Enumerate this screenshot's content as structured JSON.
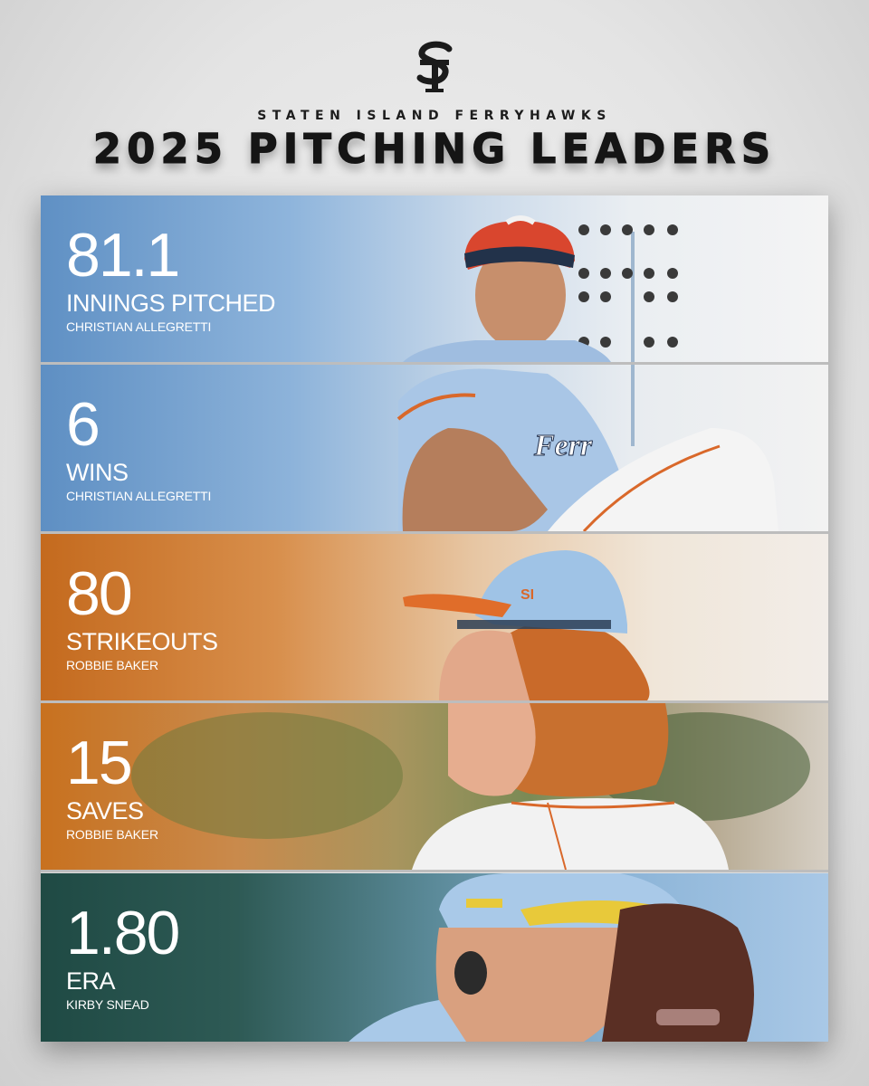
{
  "brand": {
    "logo_icon": "si-monogram-logo",
    "team_name": "STATEN ISLAND FERRYHAWKS",
    "headline": "2025 PITCHING LEADERS",
    "colors": {
      "blue": "#7fa8d4",
      "orange": "#d27a2a",
      "teal": "#1f4a44",
      "background": "#e6e6e6"
    }
  },
  "leaders": [
    {
      "value": "81.1",
      "category": "INNINGS PITCHED",
      "player": "CHRISTIAN ALLEGRETTI"
    },
    {
      "value": "6",
      "category": "WINS",
      "player": "CHRISTIAN ALLEGRETTI"
    },
    {
      "value": "80",
      "category": "STRIKEOUTS",
      "player": "ROBBIE BAKER"
    },
    {
      "value": "15",
      "category": "SAVES",
      "player": "ROBBIE BAKER"
    },
    {
      "value": "1.80",
      "category": "ERA",
      "player": "KIRBY SNEAD"
    }
  ],
  "photos": {
    "pitcher_1": "pitcher-delivery-photo",
    "pitcher_2": "pitcher-profile-photo",
    "pitcher_3": "pitcher-glove-photo"
  }
}
